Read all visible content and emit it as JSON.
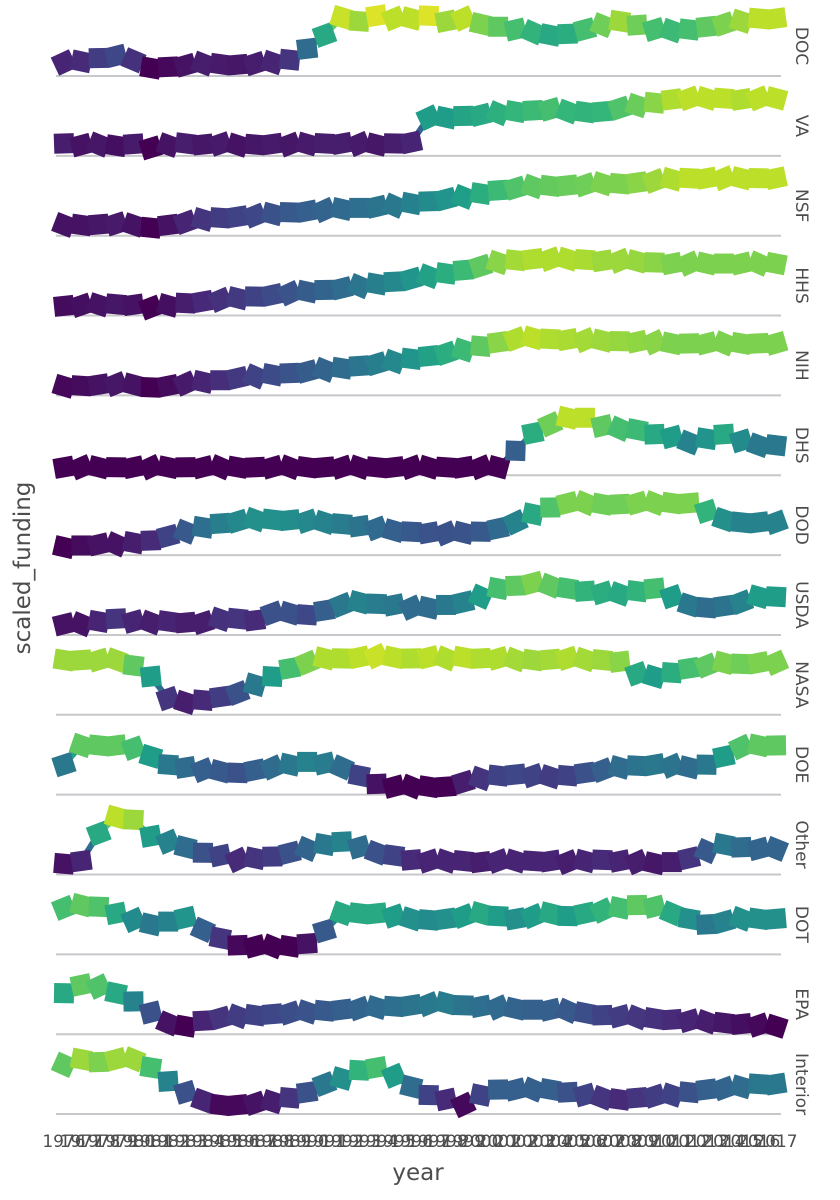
{
  "chart_data": {
    "type": "line",
    "xlabel": "year",
    "ylabel": "scaled_funding",
    "x": [
      1976,
      1977,
      1978,
      1979,
      1980,
      1981,
      1982,
      1983,
      1984,
      1985,
      1986,
      1987,
      1988,
      1989,
      1990,
      1991,
      1992,
      1993,
      1994,
      1995,
      1996,
      1997,
      1998,
      1999,
      2000,
      2001,
      2002,
      2003,
      2004,
      2005,
      2006,
      2007,
      2008,
      2009,
      2010,
      2011,
      2012,
      2013,
      2014,
      2015,
      2016,
      2017
    ],
    "x_tick_labels": [
      "1976",
      "1977",
      "1978",
      "1979",
      "1980",
      "1981",
      "1982",
      "1983",
      "1984",
      "1985",
      "1986",
      "1987",
      "1988",
      "1989",
      "1990",
      "1991",
      "1992",
      "1993",
      "1994",
      "1995",
      "1996",
      "1997",
      "1998",
      "1999",
      "2000",
      "2001",
      "2002",
      "2003",
      "2004",
      "2005",
      "2006",
      "2007",
      "2008",
      "2009",
      "2010",
      "2011",
      "2012",
      "2013",
      "2014",
      "2015",
      "2016",
      "2017"
    ],
    "ylim": [
      0,
      1
    ],
    "color_scale": [
      "#440154",
      "#482878",
      "#3e4989",
      "#31688e",
      "#26828e",
      "#1f9e89",
      "#35b779",
      "#6ece58",
      "#b5de2b",
      "#fde725"
    ],
    "grid": false,
    "legend": "none",
    "series": [
      {
        "name": "DOC",
        "values": [
          0.1,
          0.12,
          0.18,
          0.22,
          0.14,
          0.0,
          0.02,
          0.05,
          0.08,
          0.07,
          0.06,
          0.08,
          0.1,
          0.15,
          0.35,
          0.6,
          0.92,
          0.85,
          0.95,
          0.9,
          0.9,
          0.95,
          0.85,
          0.9,
          0.8,
          0.75,
          0.7,
          0.65,
          0.6,
          0.62,
          0.7,
          0.78,
          0.85,
          0.78,
          0.7,
          0.68,
          0.7,
          0.75,
          0.8,
          0.85,
          0.9,
          0.9
        ]
      },
      {
        "name": "VA",
        "values": [
          0.08,
          0.05,
          0.06,
          0.04,
          0.07,
          0.0,
          0.05,
          0.08,
          0.06,
          0.07,
          0.05,
          0.06,
          0.07,
          0.06,
          0.07,
          0.08,
          0.08,
          0.07,
          0.06,
          0.08,
          0.1,
          0.55,
          0.55,
          0.58,
          0.6,
          0.63,
          0.66,
          0.68,
          0.7,
          0.66,
          0.65,
          0.66,
          0.72,
          0.77,
          0.82,
          0.88,
          0.9,
          0.9,
          0.9,
          0.88,
          0.9,
          0.9
        ]
      },
      {
        "name": "NSF",
        "values": [
          0.05,
          0.05,
          0.06,
          0.07,
          0.05,
          0.0,
          0.05,
          0.1,
          0.15,
          0.18,
          0.2,
          0.22,
          0.25,
          0.28,
          0.3,
          0.32,
          0.34,
          0.36,
          0.38,
          0.4,
          0.44,
          0.48,
          0.52,
          0.56,
          0.62,
          0.68,
          0.72,
          0.75,
          0.76,
          0.77,
          0.78,
          0.8,
          0.8,
          0.82,
          0.85,
          0.88,
          0.9,
          0.9,
          0.9,
          0.9,
          0.9,
          0.9
        ]
      },
      {
        "name": "HHS",
        "values": [
          0.03,
          0.04,
          0.05,
          0.06,
          0.05,
          0.0,
          0.04,
          0.08,
          0.11,
          0.14,
          0.17,
          0.2,
          0.23,
          0.26,
          0.29,
          0.32,
          0.35,
          0.39,
          0.43,
          0.47,
          0.52,
          0.57,
          0.62,
          0.68,
          0.75,
          0.82,
          0.86,
          0.88,
          0.88,
          0.88,
          0.87,
          0.85,
          0.85,
          0.84,
          0.82,
          0.8,
          0.8,
          0.8,
          0.8,
          0.8,
          0.8,
          0.8
        ]
      },
      {
        "name": "NIH",
        "values": [
          0.02,
          0.03,
          0.05,
          0.06,
          0.05,
          0.0,
          0.03,
          0.07,
          0.1,
          0.13,
          0.17,
          0.2,
          0.23,
          0.26,
          0.29,
          0.32,
          0.35,
          0.39,
          0.43,
          0.47,
          0.52,
          0.57,
          0.62,
          0.68,
          0.75,
          0.82,
          0.88,
          0.9,
          0.88,
          0.87,
          0.86,
          0.85,
          0.84,
          0.83,
          0.82,
          0.8,
          0.8,
          0.8,
          0.8,
          0.8,
          0.8,
          0.8
        ]
      },
      {
        "name": "DHS",
        "values": [
          0.0,
          0.0,
          0.0,
          0.0,
          0.0,
          0.0,
          0.0,
          0.0,
          0.0,
          0.0,
          0.0,
          0.0,
          0.0,
          0.0,
          0.0,
          0.0,
          0.0,
          0.0,
          0.0,
          0.0,
          0.0,
          0.0,
          0.0,
          0.0,
          0.0,
          0.0,
          0.3,
          0.62,
          0.78,
          0.9,
          0.9,
          0.75,
          0.7,
          0.68,
          0.6,
          0.55,
          0.45,
          0.52,
          0.6,
          0.48,
          0.4,
          0.4
        ]
      },
      {
        "name": "DOD",
        "values": [
          0.0,
          0.03,
          0.05,
          0.05,
          0.08,
          0.12,
          0.2,
          0.28,
          0.36,
          0.43,
          0.47,
          0.5,
          0.5,
          0.49,
          0.47,
          0.45,
          0.42,
          0.38,
          0.34,
          0.3,
          0.28,
          0.26,
          0.25,
          0.26,
          0.28,
          0.34,
          0.45,
          0.6,
          0.72,
          0.8,
          0.8,
          0.78,
          0.78,
          0.8,
          0.8,
          0.8,
          0.8,
          0.65,
          0.5,
          0.45,
          0.45,
          0.45
        ]
      },
      {
        "name": "USDA",
        "values": [
          0.05,
          0.05,
          0.1,
          0.15,
          0.1,
          0.08,
          0.1,
          0.08,
          0.08,
          0.14,
          0.15,
          0.12,
          0.25,
          0.25,
          0.22,
          0.3,
          0.4,
          0.45,
          0.42,
          0.4,
          0.35,
          0.35,
          0.4,
          0.45,
          0.55,
          0.7,
          0.75,
          0.8,
          0.75,
          0.7,
          0.65,
          0.62,
          0.6,
          0.65,
          0.7,
          0.55,
          0.4,
          0.35,
          0.38,
          0.45,
          0.55,
          0.55
        ]
      },
      {
        "name": "NASA",
        "values": [
          0.85,
          0.85,
          0.85,
          0.85,
          0.75,
          0.55,
          0.15,
          0.08,
          0.12,
          0.18,
          0.25,
          0.4,
          0.55,
          0.7,
          0.8,
          0.88,
          0.88,
          0.9,
          0.92,
          0.9,
          0.88,
          0.9,
          0.88,
          0.9,
          0.88,
          0.88,
          0.86,
          0.85,
          0.86,
          0.88,
          0.86,
          0.85,
          0.82,
          0.6,
          0.55,
          0.62,
          0.7,
          0.75,
          0.8,
          0.78,
          0.8,
          0.8
        ]
      },
      {
        "name": "DOE",
        "values": [
          0.4,
          0.75,
          0.75,
          0.75,
          0.7,
          0.55,
          0.4,
          0.35,
          0.3,
          0.28,
          0.25,
          0.3,
          0.35,
          0.4,
          0.45,
          0.42,
          0.35,
          0.2,
          0.05,
          0.0,
          0.0,
          0.0,
          0.0,
          0.08,
          0.15,
          0.2,
          0.22,
          0.2,
          0.18,
          0.2,
          0.25,
          0.3,
          0.35,
          0.38,
          0.4,
          0.38,
          0.35,
          0.4,
          0.55,
          0.72,
          0.75,
          0.75
        ]
      },
      {
        "name": "Other",
        "values": [
          0.05,
          0.1,
          0.6,
          0.9,
          0.85,
          0.55,
          0.45,
          0.35,
          0.25,
          0.2,
          0.12,
          0.15,
          0.18,
          0.25,
          0.32,
          0.4,
          0.45,
          0.35,
          0.25,
          0.2,
          0.12,
          0.1,
          0.1,
          0.1,
          0.08,
          0.1,
          0.1,
          0.1,
          0.1,
          0.08,
          0.1,
          0.12,
          0.1,
          0.08,
          0.06,
          0.08,
          0.15,
          0.28,
          0.4,
          0.35,
          0.32,
          0.32
        ]
      },
      {
        "name": "DOT",
        "values": [
          0.7,
          0.75,
          0.72,
          0.6,
          0.48,
          0.4,
          0.45,
          0.52,
          0.3,
          0.15,
          0.02,
          0.0,
          0.0,
          0.0,
          0.05,
          0.28,
          0.6,
          0.6,
          0.6,
          0.55,
          0.5,
          0.48,
          0.5,
          0.55,
          0.6,
          0.55,
          0.5,
          0.55,
          0.6,
          0.55,
          0.6,
          0.65,
          0.7,
          0.75,
          0.72,
          0.6,
          0.5,
          0.4,
          0.45,
          0.5,
          0.5,
          0.5
        ]
      },
      {
        "name": "EPA",
        "values": [
          0.6,
          0.75,
          0.72,
          0.6,
          0.45,
          0.25,
          0.05,
          0.0,
          0.1,
          0.15,
          0.18,
          0.2,
          0.22,
          0.24,
          0.26,
          0.28,
          0.3,
          0.32,
          0.34,
          0.36,
          0.38,
          0.4,
          0.42,
          0.38,
          0.36,
          0.34,
          0.32,
          0.3,
          0.3,
          0.28,
          0.24,
          0.2,
          0.18,
          0.16,
          0.14,
          0.12,
          0.1,
          0.08,
          0.06,
          0.04,
          0.02,
          0.0
        ]
      },
      {
        "name": "Interior",
        "values": [
          0.75,
          0.85,
          0.8,
          0.85,
          0.85,
          0.7,
          0.45,
          0.25,
          0.1,
          0.02,
          0.02,
          0.05,
          0.08,
          0.15,
          0.25,
          0.4,
          0.5,
          0.65,
          0.7,
          0.55,
          0.35,
          0.2,
          0.12,
          0.02,
          0.2,
          0.3,
          0.3,
          0.3,
          0.3,
          0.25,
          0.2,
          0.15,
          0.12,
          0.15,
          0.18,
          0.2,
          0.25,
          0.3,
          0.32,
          0.35,
          0.4,
          0.4
        ]
      }
    ]
  }
}
